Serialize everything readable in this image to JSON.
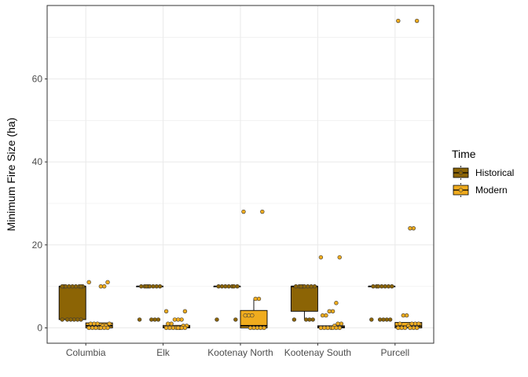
{
  "chart_data": {
    "type": "boxplot",
    "title": "",
    "xlabel": "",
    "ylabel": "Minimum Fire Size (ha)",
    "ylim": [
      -3.7,
      77.7
    ],
    "yticks": [
      0,
      20,
      40,
      60
    ],
    "grid": true,
    "legend": {
      "title": "Time",
      "placement": "right",
      "entries": [
        "Historical",
        "Modern"
      ]
    },
    "categories": [
      "Columbia",
      "Elk",
      "Kootenay North",
      "Kootenay South",
      "Purcell"
    ],
    "series": [
      {
        "name": "Historical",
        "color": "#8C6405",
        "boxes": [
          {
            "q1": 2,
            "median": 10,
            "q3": 10,
            "lower": 2,
            "upper": 10
          },
          {
            "q1": 10,
            "median": 10,
            "q3": 10,
            "lower": 10,
            "upper": 10
          },
          {
            "q1": 10,
            "median": 10,
            "q3": 10,
            "lower": 10,
            "upper": 10
          },
          {
            "q1": 4,
            "median": 10,
            "q3": 10,
            "lower": 2,
            "upper": 10
          },
          {
            "q1": 10,
            "median": 10,
            "q3": 10,
            "lower": 10,
            "upper": 10
          }
        ],
        "points": [
          [
            2,
            2,
            2,
            2,
            2,
            2,
            10,
            10,
            10,
            10,
            10,
            10,
            10,
            10,
            10
          ],
          [
            2,
            2,
            2,
            2,
            10,
            10,
            10,
            10,
            10,
            10,
            10,
            10
          ],
          [
            2,
            2,
            10,
            10,
            10,
            10,
            10,
            10,
            10
          ],
          [
            2,
            2,
            2,
            2,
            10,
            10,
            10,
            10,
            10,
            10,
            10,
            10
          ],
          [
            2,
            2,
            2,
            2,
            2,
            10,
            10,
            10,
            10,
            10,
            10,
            10
          ]
        ]
      },
      {
        "name": "Modern",
        "color": "#F0AC1E",
        "boxes": [
          {
            "q1": 0,
            "median": 0.5,
            "q3": 1.2,
            "lower": 0,
            "upper": 1.2
          },
          {
            "q1": 0,
            "median": 0.2,
            "q3": 0.6,
            "lower": 0,
            "upper": 0.6
          },
          {
            "q1": 0,
            "median": 0.5,
            "q3": 4.2,
            "lower": 0,
            "upper": 7
          },
          {
            "q1": 0,
            "median": 0.2,
            "q3": 0.5,
            "lower": 0,
            "upper": 0.5
          },
          {
            "q1": 0,
            "median": 0.4,
            "q3": 1.3,
            "lower": 0,
            "upper": 1.3
          }
        ],
        "points": [
          [
            11,
            11,
            10,
            10,
            1,
            1,
            1,
            1,
            0.5,
            0.5,
            0,
            0,
            0,
            0,
            0,
            0,
            0
          ],
          [
            4,
            4,
            2,
            2,
            2,
            1,
            1,
            0.5,
            0.5,
            0,
            0,
            0,
            0,
            0,
            0,
            0,
            0
          ],
          [
            28,
            28,
            7,
            7,
            3,
            3,
            3,
            0,
            0,
            0,
            0,
            0
          ],
          [
            17,
            17,
            6,
            4,
            4,
            3,
            3,
            1,
            1,
            0.5,
            0,
            0,
            0,
            0,
            0,
            0,
            0
          ],
          [
            74,
            74,
            24,
            24,
            3,
            3,
            1,
            1,
            1,
            1,
            0.5,
            0,
            0,
            0,
            0,
            0,
            0
          ]
        ]
      }
    ]
  }
}
